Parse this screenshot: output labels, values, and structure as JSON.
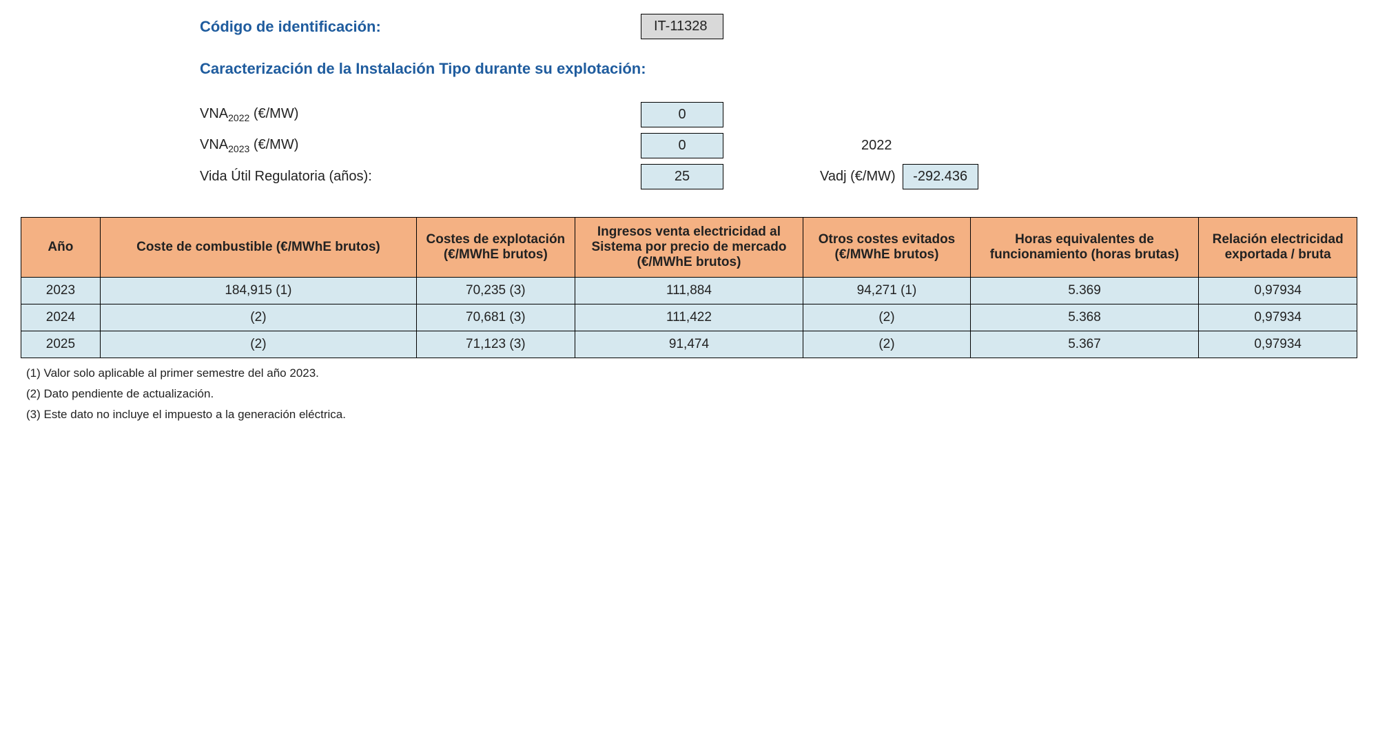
{
  "header": {
    "id_label": "Código de identificación:",
    "id_value": "IT-11328",
    "subtitle": "Caracterización de la Instalación Tipo durante su explotación:"
  },
  "params": {
    "vna2022_label_prefix": "VNA",
    "vna2022_sub": "2022",
    "vna2022_unit": " (€/MW)",
    "vna2022_value": "0",
    "vna2023_label_prefix": "VNA",
    "vna2023_sub": "2023",
    "vna2023_unit": " (€/MW)",
    "vna2023_value": "0",
    "year_plain": "2022",
    "vida_label": "Vida Útil Regulatoria (años):",
    "vida_value": "25",
    "vadj_label": "Vadj (€/MW)",
    "vadj_value": "-292.436"
  },
  "table": {
    "columns": [
      "Año",
      "Coste de combustible (€/MWhE brutos)",
      "Costes de explotación (€/MWhE brutos)",
      "Ingresos venta electricidad al Sistema por precio de mercado (€/MWhE brutos)",
      "Otros costes evitados (€/MWhE brutos)",
      "Horas equivalentes de funcionamiento (horas brutas)",
      "Relación electricidad exportada / bruta"
    ],
    "rows": [
      [
        "2023",
        "184,915 (1)",
        "70,235 (3)",
        "111,884",
        "94,271 (1)",
        "5.369",
        "0,97934"
      ],
      [
        "2024",
        "(2)",
        "70,681 (3)",
        "111,422",
        "(2)",
        "5.368",
        "0,97934"
      ],
      [
        "2025",
        "(2)",
        "71,123 (3)",
        "91,474",
        "(2)",
        "5.367",
        "0,97934"
      ]
    ],
    "header_bg": "#f4b183",
    "cell_bg": "#d6e8ef",
    "border_color": "#000000"
  },
  "footnotes": [
    "(1) Valor solo aplicable al primer semestre del año 2023.",
    "(2) Dato pendiente de actualización.",
    "(3) Este dato no incluye el impuesto a la generación eléctrica."
  ]
}
